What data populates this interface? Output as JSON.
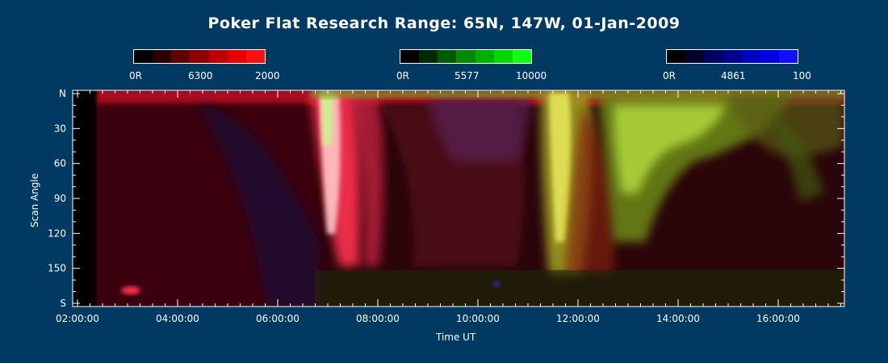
{
  "chart_data": {
    "type": "heatmap",
    "title": "Poker Flat Research Range: 65N, 147W, 01-Jan-2009",
    "xlabel": "Time UT",
    "ylabel": "Scan Angle",
    "x_ticks": [
      "02:00:00",
      "04:00:00",
      "06:00:00",
      "08:00:00",
      "10:00:00",
      "12:00:00",
      "14:00:00",
      "16:00:00"
    ],
    "y_ticks": [
      "N",
      "30",
      "60",
      "90",
      "120",
      "150",
      "S"
    ],
    "colorbars": [
      {
        "name": "6300",
        "min_label": "0R",
        "wavelength_label": "6300",
        "max_label": "2000",
        "colors": [
          "#000000",
          "#2a0000",
          "#600000",
          "#900000",
          "#c00000",
          "#e80000",
          "#ff1010"
        ]
      },
      {
        "name": "5577",
        "min_label": "0R",
        "wavelength_label": "5577",
        "max_label": "10000",
        "colors": [
          "#000000",
          "#002a00",
          "#005a00",
          "#008a00",
          "#00b000",
          "#00d800",
          "#10ff10"
        ]
      },
      {
        "name": "4861",
        "min_label": "0R",
        "wavelength_label": "4861",
        "max_label": "100",
        "colors": [
          "#000000",
          "#00002a",
          "#000060",
          "#000090",
          "#0000c0",
          "#0000e0",
          "#1010ff"
        ]
      }
    ]
  }
}
